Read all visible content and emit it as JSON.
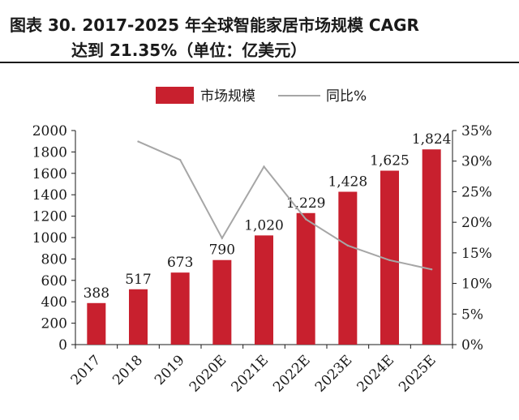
{
  "title": {
    "line1": "图表 30. 2017-2025 年全球智能家居市场规模 CAGR",
    "line2": "达到 21.35%（单位：亿美元）"
  },
  "colors": {
    "bar": "#c8202e",
    "line": "#a6a6a6",
    "axis": "#1a1a1a"
  },
  "chart_data": {
    "type": "bar",
    "categories": [
      "2017",
      "2018",
      "2019",
      "2020E",
      "2021E",
      "2022E",
      "2023E",
      "2024E",
      "2025E"
    ],
    "series": [
      {
        "name": "市场规模",
        "type": "bar",
        "axis": "left",
        "values": [
          388,
          517,
          673,
          790,
          1020,
          1229,
          1428,
          1625,
          1824
        ],
        "labels": [
          "388",
          "517",
          "673",
          "790",
          "1,020",
          "1,229",
          "1,428",
          "1,625",
          "1,824"
        ]
      },
      {
        "name": "同比%",
        "type": "line",
        "axis": "right",
        "values": [
          null,
          33.2,
          30.2,
          17.4,
          29.1,
          20.5,
          16.2,
          13.8,
          12.3
        ]
      }
    ],
    "ylim": [
      0,
      2000
    ],
    "yticks": [
      "0",
      "200",
      "400",
      "600",
      "800",
      "1000",
      "1200",
      "1400",
      "1600",
      "1800",
      "2000"
    ],
    "y2lim": [
      0,
      35
    ],
    "y2ticks": [
      "0%",
      "5%",
      "10%",
      "15%",
      "20%",
      "25%",
      "30%",
      "35%"
    ],
    "legend_position": "top-center",
    "grid": false
  }
}
